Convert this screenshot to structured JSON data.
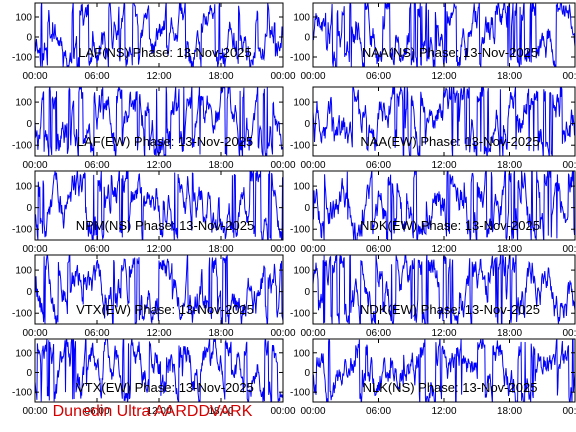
{
  "footer": "Dunedin Ultra AARDDVARK",
  "chart_data": [
    {
      "type": "line",
      "title": "LAF(NS) Phase: 13-Nov-2025",
      "series_color": "#0000ff",
      "ylim": [
        -150,
        170
      ],
      "yticks": [
        -100,
        0,
        100
      ],
      "xticks": [
        "00:00",
        "06:00",
        "12:00",
        "18:00",
        "00:00"
      ],
      "x_range_hours": [
        0,
        24
      ],
      "seed": 11
    },
    {
      "type": "line",
      "title": "NAA(NS) Phase: 13-Nov-2025",
      "series_color": "#0000ff",
      "ylim": [
        -150,
        170
      ],
      "yticks": [
        -100,
        0,
        100
      ],
      "xticks": [
        "00:00",
        "06:00",
        "12:00",
        "18:00",
        "00:00"
      ],
      "x_range_hours": [
        0,
        24
      ],
      "seed": 23
    },
    {
      "type": "line",
      "title": "LAF(EW) Phase: 13-Nov-2025",
      "series_color": "#0000ff",
      "ylim": [
        -150,
        170
      ],
      "yticks": [
        -100,
        0,
        100
      ],
      "xticks": [
        "00:00",
        "06:00",
        "12:00",
        "18:00",
        "00:00"
      ],
      "x_range_hours": [
        0,
        24
      ],
      "seed": 37
    },
    {
      "type": "line",
      "title": "NAA(EW) Phase: 13-Nov-2025",
      "series_color": "#0000ff",
      "ylim": [
        -150,
        170
      ],
      "yticks": [
        -100,
        0,
        100
      ],
      "xticks": [
        "00:00",
        "06:00",
        "12:00",
        "18:00",
        "00:00"
      ],
      "x_range_hours": [
        0,
        24
      ],
      "seed": 41
    },
    {
      "type": "line",
      "title": "NPM(NS) Phase: 13-Nov-2025",
      "series_color": "#0000ff",
      "ylim": [
        -150,
        170
      ],
      "yticks": [
        -100,
        0,
        100
      ],
      "xticks": [
        "00:00",
        "06:00",
        "12:00",
        "18:00",
        "00:00"
      ],
      "x_range_hours": [
        0,
        24
      ],
      "seed": 53
    },
    {
      "type": "line",
      "title": "NDK(EW) Phase: 13-Nov-2025",
      "series_color": "#0000ff",
      "ylim": [
        -150,
        170
      ],
      "yticks": [
        -100,
        0,
        100
      ],
      "xticks": [
        "00:00",
        "06:00",
        "12:00",
        "18:00",
        "00:00"
      ],
      "x_range_hours": [
        0,
        24
      ],
      "seed": 67
    },
    {
      "type": "line",
      "title": "VTX(EW) Phase: 13-Nov-2025",
      "series_color": "#0000ff",
      "ylim": [
        -150,
        170
      ],
      "yticks": [
        -100,
        0,
        100
      ],
      "xticks": [
        "00:00",
        "06:00",
        "12:00",
        "18:00",
        "00:00"
      ],
      "x_range_hours": [
        0,
        24
      ],
      "seed": 79
    },
    {
      "type": "line",
      "title": "NDK(EW) Phase: 13-Nov-2025",
      "series_color": "#0000ff",
      "ylim": [
        -150,
        170
      ],
      "yticks": [
        -100,
        0,
        100
      ],
      "xticks": [
        "00:00",
        "06:00",
        "12:00",
        "18:00",
        "00:00"
      ],
      "x_range_hours": [
        0,
        24
      ],
      "seed": 83
    },
    {
      "type": "line",
      "title": "VTX(EW) Phase: 13-Nov-2025",
      "series_color": "#0000ff",
      "ylim": [
        -150,
        170
      ],
      "yticks": [
        -100,
        0,
        100
      ],
      "xticks": [
        "00:00",
        "06:00",
        "12:00",
        "18:00",
        "00:00"
      ],
      "x_range_hours": [
        0,
        24
      ],
      "seed": 97
    },
    {
      "type": "line",
      "title": "NLK(NS) Phase: 13-Nov-2025",
      "series_color": "#0000ff",
      "ylim": [
        -150,
        170
      ],
      "yticks": [
        -100,
        0,
        100
      ],
      "xticks": [
        "00:00",
        "06:00",
        "12:00",
        "18:00",
        "00:00"
      ],
      "x_range_hours": [
        0,
        24
      ],
      "seed": 101
    }
  ]
}
